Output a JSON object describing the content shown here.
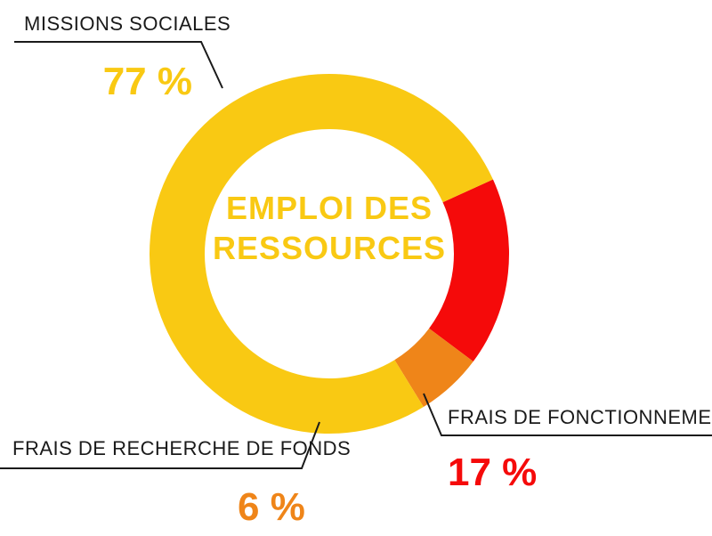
{
  "chart_data": {
    "type": "pie",
    "variant": "donut",
    "title": "EMPLOI DES RESSOURCES",
    "title_lines": [
      "EMPLOI DES",
      "RESSOURCES"
    ],
    "unit": "%",
    "slices": [
      {
        "label": "MISSIONS SOCIALES",
        "value": 77,
        "value_text": "77 %",
        "color": "#F9C913"
      },
      {
        "label": "FRAIS DE FONCTIONNEMENT",
        "value": 17,
        "value_text": "17 %",
        "color": "#F50A0A"
      },
      {
        "label": "FRAIS DE RECHERCHE DE FONDS",
        "value": 6,
        "value_text": "6 %",
        "color": "#EF8519"
      }
    ],
    "legend": "none"
  },
  "colors": {
    "title": "#F9C913",
    "leader_line": "#1a1a1a",
    "label_text": "#1a1a1a",
    "background": "#ffffff"
  }
}
